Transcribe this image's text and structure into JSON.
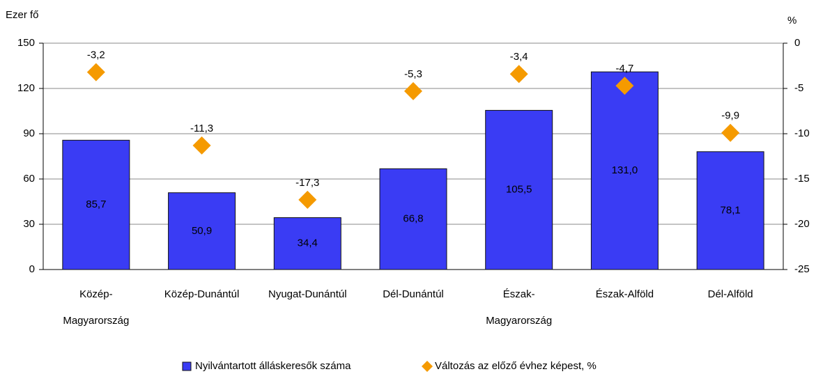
{
  "chart_data": {
    "type": "bar",
    "y_label": "Ezer fő",
    "y2_label": "%",
    "categories": [
      "Közép-\nMagyarország",
      "Közép-Dunántúl",
      "Nyugat-Dunántúl",
      "Dél-Dunántúl",
      "Észak-\nMagyarország",
      "Észak-Alföld",
      "Dél-Alföld"
    ],
    "series": [
      {
        "name": "Nyilvántartott álláskeresők száma",
        "type": "bar",
        "color": "#3a3cf4",
        "values": [
          85.7,
          50.9,
          34.4,
          66.8,
          105.5,
          131.0,
          78.1
        ],
        "value_labels": [
          "85,7",
          "50,9",
          "34,4",
          "66,8",
          "105,5",
          "131,0",
          "78,1"
        ]
      },
      {
        "name": "Változás az előző évhez képest, %",
        "type": "diamond",
        "axis": "y2",
        "color": "#f59a00",
        "values": [
          -3.2,
          -11.3,
          -17.3,
          -5.3,
          -3.4,
          -4.7,
          -9.9
        ],
        "value_labels": [
          "-3,2",
          "-11,3",
          "-17,3",
          "-5,3",
          "-3,4",
          "-4,7",
          "-9,9"
        ]
      }
    ],
    "ylim": [
      0,
      150
    ],
    "yticks": [
      0,
      30,
      60,
      90,
      120,
      150
    ],
    "y2lim": [
      -25,
      0
    ],
    "y2ticks": [
      -25,
      -20,
      -15,
      -10,
      -5,
      0
    ],
    "grid": true,
    "legend": "bottom"
  }
}
